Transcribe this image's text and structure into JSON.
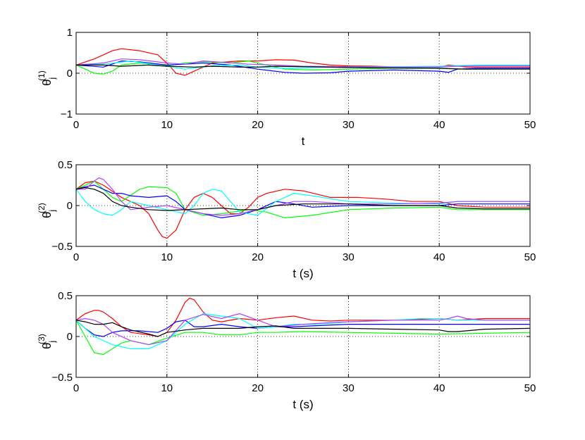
{
  "chart_data": [
    {
      "type": "line",
      "xlabel": "t",
      "ylabel_base": "θ",
      "ylabel_sub": "j",
      "ylabel_sup": "(1)",
      "xlim": [
        0,
        50
      ],
      "ylim": [
        -1,
        1
      ],
      "xticks": [
        0,
        10,
        20,
        30,
        40,
        50
      ],
      "xtick_labels": [
        "0",
        "10",
        "20",
        "30",
        "40",
        "50"
      ],
      "yticks": [
        -1,
        0,
        1
      ],
      "ytick_labels": [
        "−1",
        "0",
        "1"
      ],
      "grid_x": [
        10,
        20,
        30,
        40
      ],
      "zero_line": true,
      "series": [
        {
          "color": "#ff0000",
          "x": [
            0,
            2,
            4,
            5,
            7,
            9,
            10,
            11,
            12,
            13,
            15,
            18,
            20,
            22,
            24,
            26,
            28,
            30,
            33,
            36,
            40,
            41,
            42,
            43,
            45,
            50
          ],
          "y": [
            0.2,
            0.35,
            0.55,
            0.6,
            0.55,
            0.45,
            0.25,
            0.0,
            -0.05,
            0.05,
            0.25,
            0.3,
            0.3,
            0.33,
            0.32,
            0.25,
            0.2,
            0.18,
            0.17,
            0.15,
            0.15,
            0.2,
            0.18,
            0.15,
            0.15,
            0.15
          ]
        },
        {
          "color": "#00ff00",
          "x": [
            0,
            1,
            2,
            3,
            4,
            5,
            7,
            10,
            12,
            14,
            17,
            19,
            21,
            23,
            26,
            30,
            35,
            40,
            42,
            45,
            50
          ],
          "y": [
            0.2,
            0.1,
            0.0,
            -0.02,
            0.05,
            0.2,
            0.25,
            0.18,
            0.25,
            0.28,
            0.25,
            0.3,
            0.2,
            0.1,
            0.08,
            0.1,
            0.12,
            0.12,
            0.1,
            0.1,
            0.12
          ]
        },
        {
          "color": "#0000ff",
          "x": [
            0,
            3,
            5,
            7,
            10,
            12,
            14,
            17,
            20,
            23,
            25,
            28,
            30,
            35,
            40,
            41,
            42,
            44,
            47,
            50
          ],
          "y": [
            0.2,
            0.15,
            0.3,
            0.28,
            0.2,
            0.22,
            0.25,
            0.2,
            0.1,
            0.02,
            0.0,
            0.01,
            0.05,
            0.08,
            0.05,
            0.02,
            0.1,
            0.12,
            0.12,
            0.12
          ]
        },
        {
          "color": "#00ffff",
          "x": [
            0,
            3,
            6,
            9,
            12,
            15,
            18,
            20,
            23,
            26,
            30,
            35,
            40,
            44,
            47,
            50
          ],
          "y": [
            0.2,
            0.22,
            0.3,
            0.2,
            0.1,
            0.18,
            0.2,
            0.15,
            0.12,
            0.14,
            0.16,
            0.16,
            0.17,
            0.2,
            0.2,
            0.2
          ]
        },
        {
          "color": "#b040ff",
          "x": [
            0,
            3,
            5,
            7,
            10,
            12,
            14,
            16,
            19,
            22,
            25,
            30,
            35,
            40,
            42,
            45,
            50
          ],
          "y": [
            0.2,
            0.25,
            0.35,
            0.33,
            0.25,
            0.22,
            0.3,
            0.27,
            0.22,
            0.2,
            0.17,
            0.16,
            0.15,
            0.15,
            0.17,
            0.18,
            0.18
          ]
        },
        {
          "color": "#000000",
          "x": [
            0,
            3,
            5,
            8,
            10,
            13,
            15,
            18,
            20,
            22,
            25,
            30,
            35,
            40,
            43,
            46,
            50
          ],
          "y": [
            0.2,
            0.2,
            0.17,
            0.2,
            0.17,
            0.15,
            0.17,
            0.15,
            0.15,
            0.17,
            0.16,
            0.14,
            0.13,
            0.12,
            0.1,
            0.1,
            0.1
          ]
        }
      ]
    },
    {
      "type": "line",
      "xlabel": "t (s)",
      "ylabel_base": "θ",
      "ylabel_sub": "j",
      "ylabel_sup": "(2)",
      "xlim": [
        0,
        50
      ],
      "ylim": [
        -0.5,
        0.5
      ],
      "xticks": [
        0,
        10,
        20,
        30,
        40,
        50
      ],
      "xtick_labels": [
        "0",
        "10",
        "20",
        "30",
        "40",
        "50"
      ],
      "yticks": [
        -0.5,
        0,
        0.5
      ],
      "ytick_labels": [
        "−0.5",
        "0",
        "0.5"
      ],
      "grid_x": [
        10,
        20,
        30,
        40
      ],
      "zero_line": true,
      "series": [
        {
          "color": "#ff0000",
          "x": [
            0,
            1,
            2,
            3,
            5,
            7,
            8,
            9,
            9.5,
            10,
            11,
            12,
            13,
            14,
            15,
            16,
            17,
            18,
            19,
            20,
            21,
            23,
            25,
            28,
            31,
            34,
            37,
            40,
            42,
            45,
            50
          ],
          "y": [
            0.2,
            0.28,
            0.3,
            0.25,
            0.1,
            0.0,
            -0.1,
            -0.3,
            -0.38,
            -0.4,
            -0.3,
            -0.05,
            0.1,
            0.15,
            0.1,
            0.0,
            -0.1,
            -0.1,
            -0.02,
            0.1,
            0.15,
            0.2,
            0.18,
            0.1,
            0.1,
            0.08,
            0.05,
            0.05,
            0.0,
            -0.02,
            -0.02
          ]
        },
        {
          "color": "#00ff00",
          "x": [
            0,
            1,
            2,
            3,
            4,
            5,
            7,
            8,
            10,
            11,
            12,
            14,
            16,
            19,
            21,
            23,
            26,
            30,
            35,
            40,
            42,
            45,
            50
          ],
          "y": [
            0.2,
            0.25,
            0.3,
            0.2,
            0.1,
            0.05,
            0.2,
            0.23,
            0.22,
            0.15,
            -0.05,
            -0.12,
            -0.1,
            -0.05,
            -0.08,
            -0.15,
            -0.12,
            -0.05,
            -0.03,
            -0.02,
            -0.05,
            -0.05,
            -0.05
          ]
        },
        {
          "color": "#0000ff",
          "x": [
            0,
            1,
            2,
            3,
            4,
            5,
            6,
            8,
            10,
            11,
            12,
            14,
            16,
            18,
            20,
            22,
            24,
            26,
            30,
            35,
            40,
            42,
            45,
            50
          ],
          "y": [
            0.2,
            0.23,
            0.25,
            0.2,
            0.15,
            0.15,
            0.12,
            0.1,
            0.12,
            0.05,
            -0.05,
            -0.1,
            -0.15,
            -0.12,
            -0.05,
            0.05,
            0.02,
            -0.02,
            0.0,
            0.0,
            0.0,
            0.02,
            0.02,
            0.02
          ]
        },
        {
          "color": "#00ffff",
          "x": [
            0,
            1,
            2,
            3,
            4,
            5,
            6,
            8,
            10,
            12,
            13,
            14,
            15,
            16,
            17,
            18,
            20,
            22,
            24,
            26,
            30,
            35,
            40,
            42,
            45,
            50
          ],
          "y": [
            0.2,
            0.05,
            -0.05,
            -0.1,
            -0.12,
            -0.05,
            0.05,
            0.0,
            -0.05,
            -0.1,
            0.0,
            0.15,
            0.2,
            0.18,
            0.05,
            -0.08,
            -0.12,
            0.05,
            0.15,
            0.12,
            0.05,
            0.03,
            0.02,
            0.05,
            0.05,
            0.05
          ]
        },
        {
          "color": "#b040ff",
          "x": [
            0,
            1,
            2,
            2.5,
            3,
            4,
            5,
            6,
            8,
            10,
            12,
            14,
            16,
            18,
            20,
            22,
            24,
            26,
            30,
            35,
            40,
            42,
            45,
            50
          ],
          "y": [
            0.2,
            0.2,
            0.3,
            0.34,
            0.32,
            0.2,
            0.05,
            -0.05,
            -0.02,
            0.0,
            -0.05,
            -0.1,
            -0.12,
            -0.1,
            -0.05,
            0.0,
            0.05,
            0.05,
            0.02,
            0.02,
            0.03,
            0.05,
            0.05,
            0.05
          ]
        },
        {
          "color": "#000000",
          "x": [
            0,
            1,
            2,
            3,
            4,
            5,
            6,
            8,
            10,
            12,
            14,
            16,
            18,
            20,
            22,
            25,
            30,
            35,
            40,
            42,
            45,
            50
          ],
          "y": [
            0.2,
            0.22,
            0.2,
            0.15,
            0.05,
            0.0,
            -0.02,
            -0.05,
            -0.06,
            -0.05,
            -0.04,
            -0.03,
            -0.05,
            -0.05,
            0.0,
            0.02,
            0.02,
            0.0,
            0.0,
            -0.03,
            -0.04,
            -0.04
          ]
        }
      ]
    },
    {
      "type": "line",
      "xlabel": "t (s)",
      "ylabel_base": "θ",
      "ylabel_sub": "j",
      "ylabel_sup": "(3)",
      "xlim": [
        0,
        50
      ],
      "ylim": [
        -0.5,
        0.5
      ],
      "xticks": [
        0,
        10,
        20,
        30,
        40,
        50
      ],
      "xtick_labels": [
        "0",
        "10",
        "20",
        "30",
        "40",
        "50"
      ],
      "yticks": [
        -0.5,
        0,
        0.5
      ],
      "ytick_labels": [
        "−0.5",
        "0",
        "0.5"
      ],
      "grid_x": [
        10,
        20,
        30,
        40
      ],
      "zero_line": true,
      "series": [
        {
          "color": "#ff0000",
          "x": [
            0,
            1,
            2,
            2.5,
            3,
            4,
            5,
            6,
            8,
            9,
            10,
            11,
            12,
            12.5,
            13,
            14,
            15,
            16,
            18,
            20,
            22,
            24,
            26,
            28,
            30,
            35,
            40,
            42,
            45,
            50
          ],
          "y": [
            0.2,
            0.28,
            0.32,
            0.32,
            0.3,
            0.22,
            0.12,
            0.05,
            0.02,
            0.0,
            0.05,
            0.2,
            0.42,
            0.47,
            0.45,
            0.3,
            0.2,
            0.18,
            0.22,
            0.2,
            0.23,
            0.25,
            0.2,
            0.19,
            0.2,
            0.2,
            0.22,
            0.2,
            0.22,
            0.22
          ]
        },
        {
          "color": "#00ff00",
          "x": [
            0,
            1,
            2,
            3,
            4,
            5,
            6,
            8,
            10,
            12,
            14,
            16,
            18,
            20,
            22,
            25,
            30,
            35,
            40,
            45,
            50
          ],
          "y": [
            0.2,
            0.0,
            -0.2,
            -0.22,
            -0.15,
            -0.08,
            -0.05,
            -0.1,
            -0.02,
            0.05,
            0.05,
            0.02,
            0.02,
            0.05,
            0.05,
            0.06,
            0.05,
            0.04,
            0.03,
            0.04,
            0.05
          ]
        },
        {
          "color": "#0000ff",
          "x": [
            0,
            1,
            2,
            3,
            4,
            5,
            7,
            9,
            10,
            11,
            12,
            13,
            14,
            16,
            18,
            20,
            22,
            24,
            26,
            30,
            35,
            40,
            42,
            45,
            50
          ],
          "y": [
            0.2,
            0.1,
            0.02,
            0.0,
            0.05,
            0.07,
            0.07,
            0.05,
            0.1,
            0.18,
            0.2,
            0.12,
            0.12,
            0.15,
            0.12,
            0.1,
            0.12,
            0.12,
            0.13,
            0.15,
            0.15,
            0.15,
            0.15,
            0.15,
            0.15
          ]
        },
        {
          "color": "#00ffff",
          "x": [
            0,
            2,
            4,
            6,
            8,
            10,
            12,
            14,
            16,
            18,
            20,
            22,
            24,
            26,
            28,
            30,
            35,
            38,
            40,
            42,
            45,
            50
          ],
          "y": [
            0.2,
            0.0,
            -0.1,
            -0.15,
            -0.15,
            -0.05,
            0.15,
            0.28,
            0.25,
            0.22,
            0.1,
            0.12,
            0.15,
            0.15,
            0.16,
            0.18,
            0.2,
            0.22,
            0.22,
            0.2,
            0.2,
            0.2
          ]
        },
        {
          "color": "#b040ff",
          "x": [
            0,
            1,
            2,
            3,
            4,
            6,
            8,
            10,
            12,
            14,
            16,
            18,
            20,
            22,
            25,
            28,
            30,
            35,
            40,
            41,
            42,
            43,
            45,
            50
          ],
          "y": [
            0.2,
            0.22,
            0.2,
            0.15,
            0.05,
            -0.05,
            -0.1,
            -0.05,
            0.2,
            0.27,
            0.22,
            0.28,
            0.2,
            0.12,
            0.15,
            0.17,
            0.18,
            0.2,
            0.2,
            0.22,
            0.25,
            0.22,
            0.2,
            0.2
          ]
        },
        {
          "color": "#000000",
          "x": [
            0,
            1,
            2,
            3,
            4,
            5,
            6,
            8,
            9,
            10,
            12,
            14,
            16,
            18,
            20,
            22,
            24,
            26,
            30,
            35,
            40,
            41,
            42,
            45,
            50
          ],
          "y": [
            0.2,
            0.18,
            0.15,
            0.15,
            0.17,
            0.12,
            0.08,
            0.03,
            0.0,
            0.05,
            0.08,
            0.1,
            0.1,
            0.1,
            0.12,
            0.13,
            0.1,
            0.1,
            0.1,
            0.09,
            0.08,
            0.06,
            0.06,
            0.09,
            0.1
          ]
        }
      ]
    }
  ]
}
